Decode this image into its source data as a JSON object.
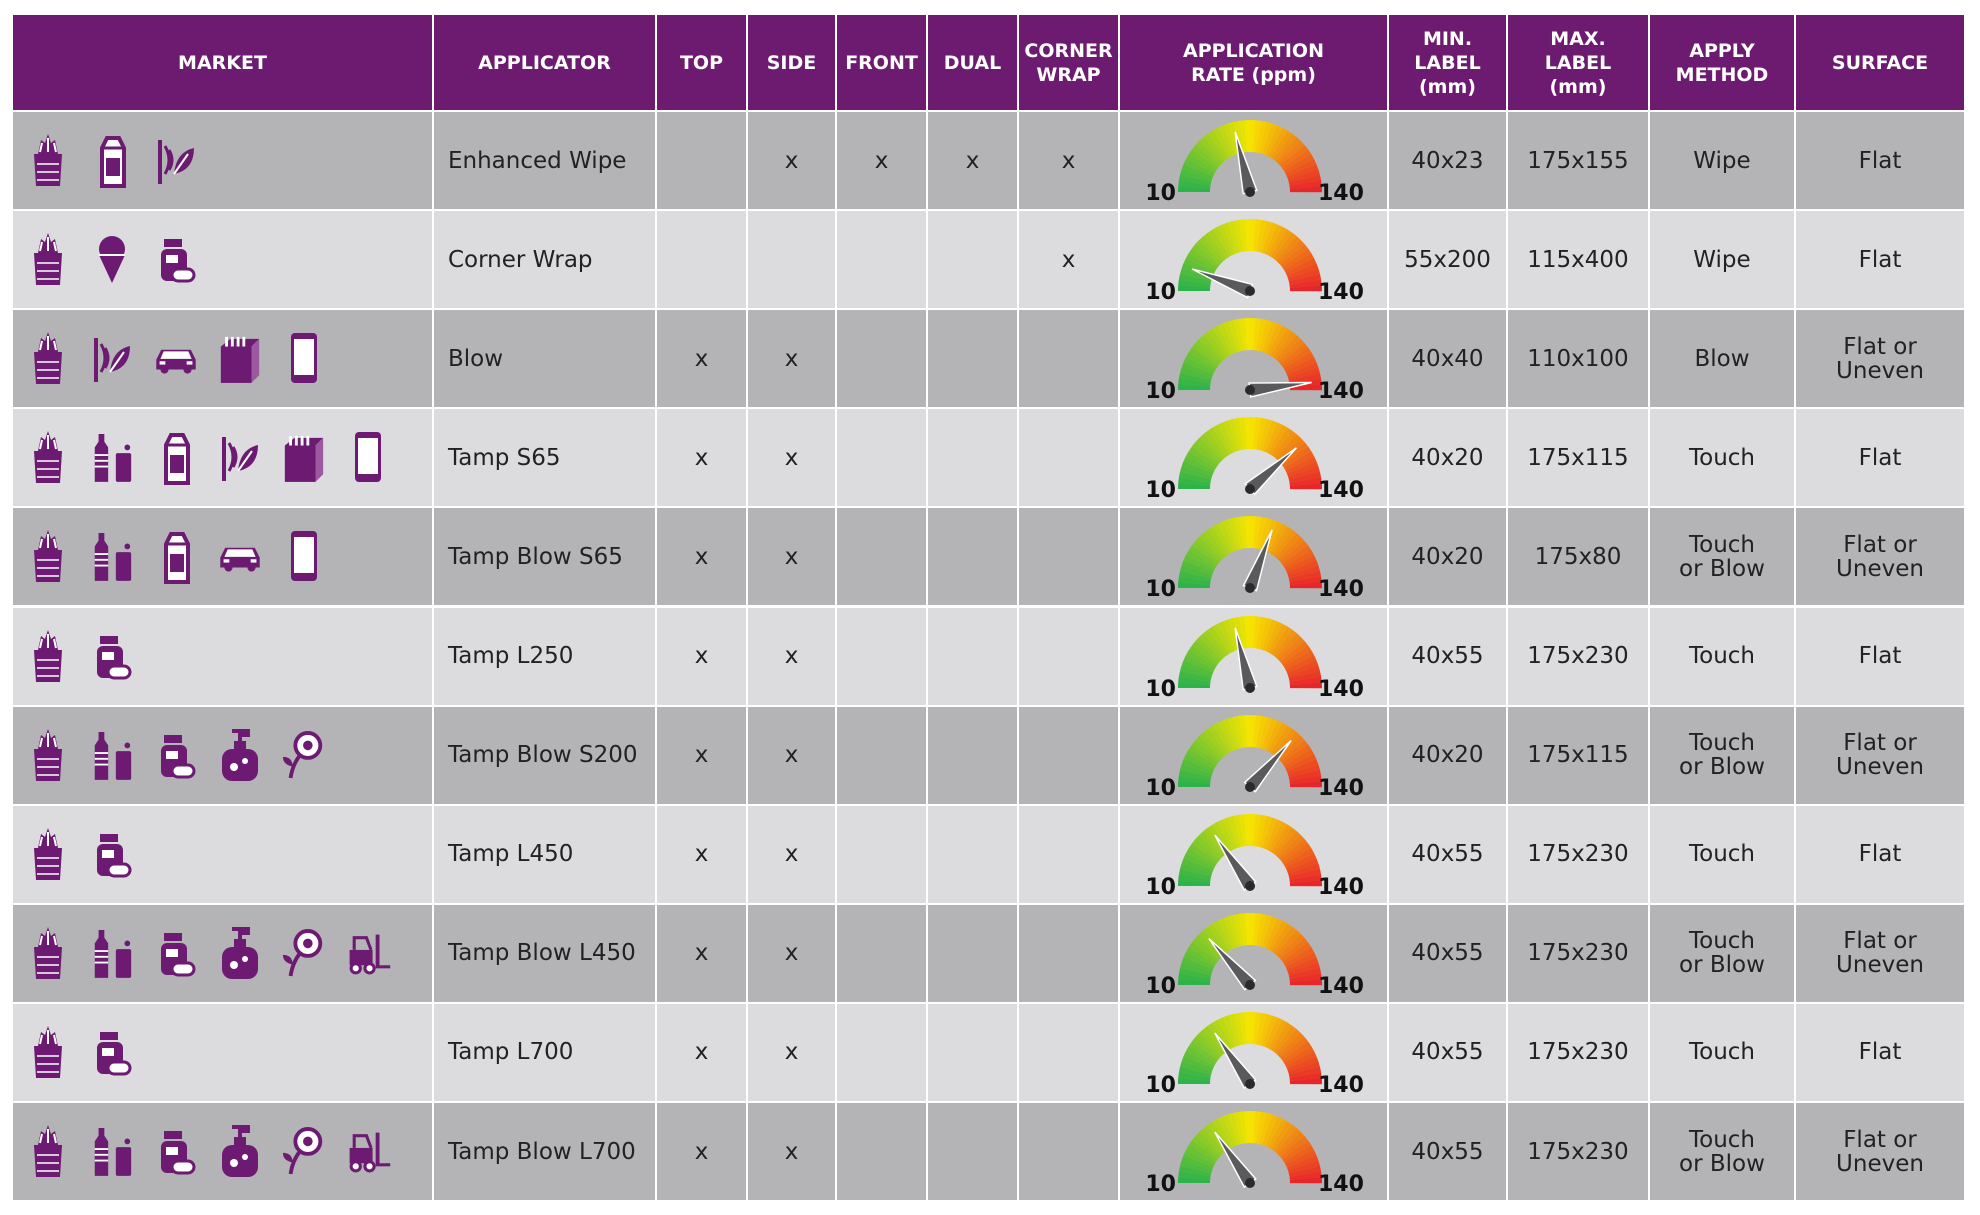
{
  "header": {
    "columns": [
      "MARKET",
      "APPLICATOR",
      "TOP",
      "SIDE",
      "FRONT",
      "DUAL",
      "CORNER\nWRAP",
      "APPLICATION\nRATE (ppm)",
      "MIN.\nLABEL\n(mm)",
      "MAX.\nLABEL\n(mm)",
      "APPLY\nMETHOD",
      "SURFACE"
    ]
  },
  "gauge": {
    "min": 10,
    "max": 140
  },
  "rows": [
    {
      "applicator": "Enhanced Wipe",
      "checks": [
        null,
        "x",
        "x",
        "x",
        "x"
      ],
      "rate": 65,
      "min_label": "40x23",
      "max_label": "175x155",
      "apply_method": "Wipe",
      "surface": "Flat"
    },
    {
      "applicator": "Corner Wrap",
      "checks": [
        null,
        null,
        null,
        null,
        "x"
      ],
      "rate": 25,
      "min_label": "55x200",
      "max_label": "115x400",
      "apply_method": "Wipe",
      "surface": "Flat"
    },
    {
      "applicator": "Blow",
      "checks": [
        "x",
        "x",
        null,
        null,
        null
      ],
      "rate": 135,
      "min_label": "40x40",
      "max_label": "110x100",
      "apply_method": "Blow",
      "surface": "Flat or\nUneven"
    },
    {
      "applicator": "Tamp S65",
      "checks": [
        "x",
        "x",
        null,
        null,
        null
      ],
      "rate": 110,
      "min_label": "40x20",
      "max_label": "175x115",
      "apply_method": "Touch",
      "surface": "Flat"
    },
    {
      "applicator": "Tamp Blow S65",
      "checks": [
        "x",
        "x",
        null,
        null,
        null
      ],
      "rate": 90,
      "min_label": "40x20",
      "max_label": "175x80",
      "apply_method": "Touch\nor Blow",
      "surface": "Flat or\nUneven"
    },
    {
      "applicator": "Tamp L250",
      "checks": [
        "x",
        "x",
        null,
        null,
        null
      ],
      "rate": 65,
      "min_label": "40x55",
      "max_label": "175x230",
      "apply_method": "Touch",
      "surface": "Flat"
    },
    {
      "applicator": "Tamp Blow S200",
      "checks": [
        "x",
        "x",
        null,
        null,
        null
      ],
      "rate": 105,
      "min_label": "40x20",
      "max_label": "175x115",
      "apply_method": "Touch\nor Blow",
      "surface": "Flat or\nUneven"
    },
    {
      "applicator": "Tamp L450",
      "checks": [
        "x",
        "x",
        null,
        null,
        null
      ],
      "rate": 50,
      "min_label": "40x55",
      "max_label": "175x230",
      "apply_method": "Touch",
      "surface": "Flat"
    },
    {
      "applicator": "Tamp Blow L450",
      "checks": [
        "x",
        "x",
        null,
        null,
        null
      ],
      "rate": 45,
      "min_label": "40x55",
      "max_label": "175x230",
      "apply_method": "Touch\nor Blow",
      "surface": "Flat or\nUneven"
    },
    {
      "applicator": "Tamp L700",
      "checks": [
        "x",
        "x",
        null,
        null,
        null
      ],
      "rate": 50,
      "min_label": "40x55",
      "max_label": "175x230",
      "apply_method": "Touch",
      "surface": "Flat"
    },
    {
      "applicator": "Tamp Blow L700",
      "checks": [
        "x",
        "x",
        null,
        null,
        null
      ],
      "rate": 50,
      "min_label": "40x55",
      "max_label": "175x230",
      "apply_method": "Touch\nor Blow",
      "surface": "Flat or\nUneven"
    }
  ]
}
